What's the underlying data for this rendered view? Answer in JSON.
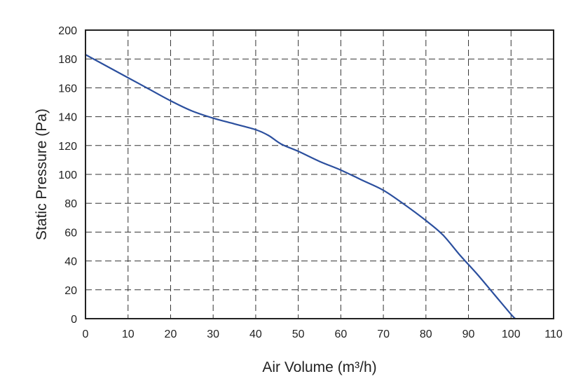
{
  "chart_data": {
    "type": "line",
    "xlabel": "Air Volume (m³/h)",
    "ylabel": "Static Pressure (Pa)",
    "xlim": [
      0,
      110
    ],
    "ylim": [
      0,
      200
    ],
    "x_ticks": [
      "0",
      "10",
      "20",
      "30",
      "40",
      "50",
      "60",
      "70",
      "80",
      "90",
      "100",
      "110"
    ],
    "y_ticks": [
      "0",
      "20",
      "40",
      "60",
      "80",
      "100",
      "120",
      "140",
      "160",
      "180",
      "200"
    ],
    "grid": true,
    "series": [
      {
        "color": "#2b4f9e",
        "x": [
          0,
          5,
          10,
          15,
          20,
          25,
          30,
          35,
          40,
          43,
          46,
          50,
          55,
          60,
          65,
          70,
          75,
          80,
          84,
          88,
          92,
          96,
          100,
          101
        ],
        "y": [
          183,
          175,
          167,
          159,
          151,
          144,
          139,
          135,
          131,
          127,
          121,
          116,
          109,
          103,
          96,
          89,
          79,
          68,
          58,
          44,
          31,
          17,
          3,
          0
        ]
      }
    ]
  }
}
